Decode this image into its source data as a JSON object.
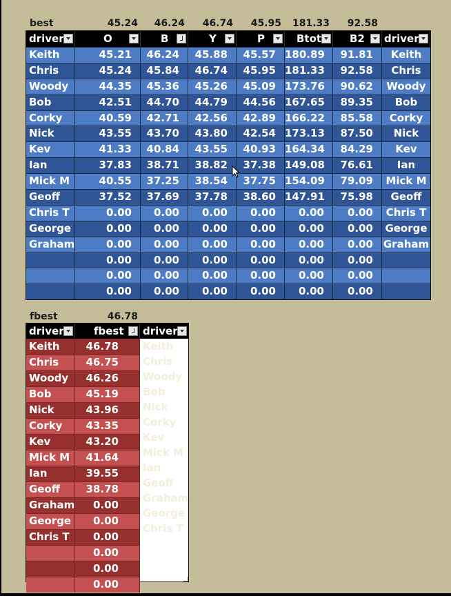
{
  "blue": {
    "best_label": "best",
    "best_values": [
      "45.24",
      "46.24",
      "46.74",
      "45.95",
      "181.33",
      "92.58"
    ],
    "headers": [
      "driver",
      "O",
      "B",
      "Y",
      "P",
      "Btot",
      "B2",
      "driver"
    ],
    "rows": [
      [
        "Keith",
        "45.21",
        "46.24",
        "45.88",
        "45.57",
        "180.89",
        "91.81",
        "Keith"
      ],
      [
        "Chris",
        "45.24",
        "45.84",
        "46.74",
        "45.95",
        "181.33",
        "92.58",
        "Chris"
      ],
      [
        "Woody",
        "44.35",
        "45.36",
        "45.26",
        "45.09",
        "173.76",
        "90.62",
        "Woody"
      ],
      [
        "Bob",
        "42.51",
        "44.70",
        "44.79",
        "44.56",
        "167.65",
        "89.35",
        "Bob"
      ],
      [
        "Corky",
        "40.59",
        "42.71",
        "42.56",
        "42.89",
        "166.22",
        "85.58",
        "Corky"
      ],
      [
        "Nick",
        "43.55",
        "43.70",
        "43.80",
        "42.54",
        "173.13",
        "87.50",
        "Nick"
      ],
      [
        "Kev",
        "41.33",
        "40.84",
        "43.55",
        "40.93",
        "164.34",
        "84.29",
        "Kev"
      ],
      [
        "Ian",
        "37.83",
        "38.71",
        "38.82",
        "37.38",
        "149.08",
        "76.61",
        "Ian"
      ],
      [
        "Mick M",
        "40.55",
        "37.25",
        "38.54",
        "37.75",
        "154.09",
        "79.09",
        "Mick M"
      ],
      [
        "Geoff",
        "37.52",
        "37.69",
        "37.78",
        "38.60",
        "147.91",
        "75.98",
        "Geoff"
      ],
      [
        "Chris T",
        "0.00",
        "0.00",
        "0.00",
        "0.00",
        "0.00",
        "0.00",
        "Chris T"
      ],
      [
        "George",
        "0.00",
        "0.00",
        "0.00",
        "0.00",
        "0.00",
        "0.00",
        "George"
      ],
      [
        "Graham",
        "0.00",
        "0.00",
        "0.00",
        "0.00",
        "0.00",
        "0.00",
        "Graham"
      ],
      [
        "",
        "0.00",
        "0.00",
        "0.00",
        "0.00",
        "0.00",
        "0.00",
        ""
      ],
      [
        "",
        "0.00",
        "0.00",
        "0.00",
        "0.00",
        "0.00",
        "0.00",
        ""
      ],
      [
        "",
        "0.00",
        "0.00",
        "0.00",
        "0.00",
        "0.00",
        "0.00",
        ""
      ]
    ],
    "colors": {
      "row_light": "#4e7cc4",
      "row_dark": "#2f5596",
      "header": "#000000"
    }
  },
  "red": {
    "best_label": "fbest",
    "best_value": "46.78",
    "headers": [
      "driver",
      "fbest",
      "driver"
    ],
    "rows": [
      [
        "Keith",
        "46.78"
      ],
      [
        "Chris",
        "46.75"
      ],
      [
        "Woody",
        "46.26"
      ],
      [
        "Bob",
        "45.19"
      ],
      [
        "Nick",
        "43.96"
      ],
      [
        "Corky",
        "43.35"
      ],
      [
        "Kev",
        "43.20"
      ],
      [
        "Mick M",
        "41.64"
      ],
      [
        "Ian",
        "39.55"
      ],
      [
        "Geoff",
        "38.78"
      ],
      [
        "Graham",
        "0.00"
      ],
      [
        "George",
        "0.00"
      ],
      [
        "Chris T",
        "0.00"
      ],
      [
        "",
        "0.00"
      ],
      [
        "",
        "0.00"
      ],
      [
        "",
        "0.00"
      ]
    ],
    "side_names": [
      "Keith",
      "Chris",
      "Woody",
      "Bob",
      "Nick",
      "Corky",
      "Kev",
      "Mick M",
      "Ian",
      "Geoff",
      "Graham",
      "George",
      "Chris T"
    ],
    "colors": {
      "row_light": "#c55051",
      "row_dark": "#96302f"
    }
  },
  "icons": {
    "filter": "filter-dropdown-icon",
    "sort": "sort-descending-icon",
    "cursor": "mouse-pointer-icon"
  }
}
